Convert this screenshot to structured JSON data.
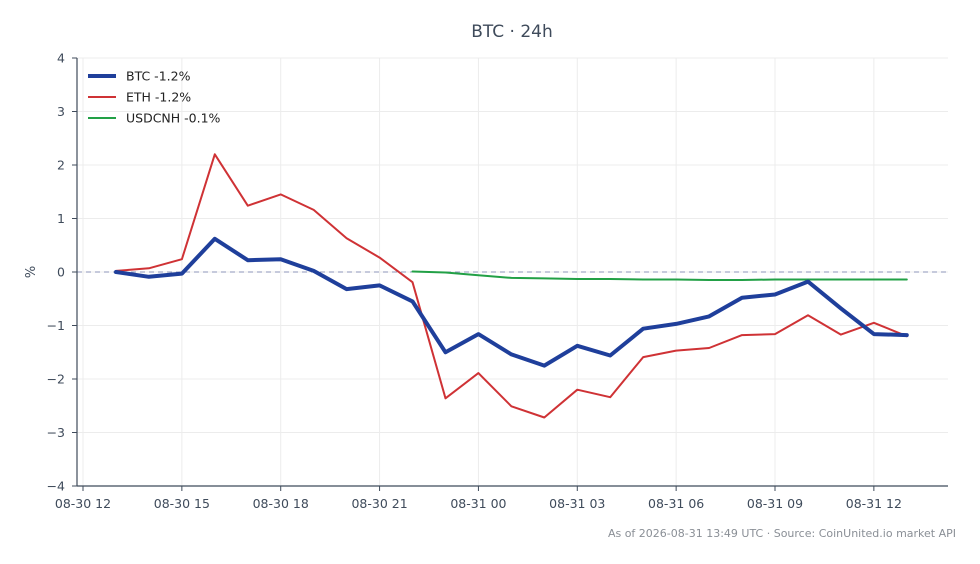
{
  "chart_data": {
    "type": "line",
    "title": "BTC · 24h",
    "xlabel": "",
    "ylabel": "%",
    "ylim": [
      -4,
      4
    ],
    "yticks": [
      4,
      3,
      2,
      1,
      0,
      -1,
      -2,
      -3,
      -4
    ],
    "ytick_labels": [
      "4",
      "3",
      "2",
      "1",
      "0",
      "−1",
      "−2",
      "−3",
      "−4"
    ],
    "xlim": [
      "2026-08-30 12:00",
      "2026-08-31 14:15"
    ],
    "xticks": [
      "2026-08-30 12:00",
      "2026-08-30 15:00",
      "2026-08-30 18:00",
      "2026-08-30 21:00",
      "2026-08-31 00:00",
      "2026-08-31 03:00",
      "2026-08-31 06:00",
      "2026-08-31 09:00",
      "2026-08-31 12:00"
    ],
    "xtick_labels": [
      "08-30 12",
      "08-30 15",
      "08-30 18",
      "08-30 21",
      "08-31 00",
      "08-31 03",
      "08-31 06",
      "08-31 09",
      "08-31 12"
    ],
    "grid": true,
    "zero_line": true,
    "legend_position": "top-left",
    "series": [
      {
        "name": "BTC -1.2%",
        "color": "#1f3f9b",
        "x": [
          "2026-08-30 13:00",
          "2026-08-30 14:00",
          "2026-08-30 15:00",
          "2026-08-30 16:00",
          "2026-08-30 17:00",
          "2026-08-30 18:00",
          "2026-08-30 19:00",
          "2026-08-30 20:00",
          "2026-08-30 21:00",
          "2026-08-30 22:00",
          "2026-08-30 23:00",
          "2026-08-31 00:00",
          "2026-08-31 01:00",
          "2026-08-31 02:00",
          "2026-08-31 03:00",
          "2026-08-31 04:00",
          "2026-08-31 05:00",
          "2026-08-31 06:00",
          "2026-08-31 07:00",
          "2026-08-31 08:00",
          "2026-08-31 09:00",
          "2026-08-31 10:00",
          "2026-08-31 11:00",
          "2026-08-31 12:00",
          "2026-08-31 13:00"
        ],
        "values": [
          0.0,
          -0.09,
          -0.03,
          0.62,
          0.22,
          0.24,
          0.02,
          -0.32,
          -0.25,
          -0.55,
          -1.5,
          -1.16,
          -1.54,
          -1.75,
          -1.38,
          -1.56,
          -1.06,
          -0.97,
          -0.83,
          -0.48,
          -0.42,
          -0.18,
          -0.68,
          -1.16,
          -1.18
        ]
      },
      {
        "name": "ETH -1.2%",
        "color": "#cf3235",
        "x": [
          "2026-08-30 13:00",
          "2026-08-30 14:00",
          "2026-08-30 15:00",
          "2026-08-30 16:00",
          "2026-08-30 17:00",
          "2026-08-30 18:00",
          "2026-08-30 19:00",
          "2026-08-30 20:00",
          "2026-08-30 21:00",
          "2026-08-30 22:00",
          "2026-08-30 23:00",
          "2026-08-31 00:00",
          "2026-08-31 01:00",
          "2026-08-31 02:00",
          "2026-08-31 03:00",
          "2026-08-31 04:00",
          "2026-08-31 05:00",
          "2026-08-31 06:00",
          "2026-08-31 07:00",
          "2026-08-31 08:00",
          "2026-08-31 09:00",
          "2026-08-31 10:00",
          "2026-08-31 11:00",
          "2026-08-31 12:00",
          "2026-08-31 13:00"
        ],
        "values": [
          0.02,
          0.07,
          0.24,
          2.2,
          1.24,
          1.45,
          1.16,
          0.63,
          0.27,
          -0.19,
          -2.36,
          -1.89,
          -2.51,
          -2.72,
          -2.2,
          -2.34,
          -1.59,
          -1.47,
          -1.42,
          -1.18,
          -1.16,
          -0.81,
          -1.17,
          -0.95,
          -1.2
        ]
      },
      {
        "name": "USDCNH -0.1%",
        "color": "#22a046",
        "x": [
          "2026-08-30 22:00",
          "2026-08-30 23:00",
          "2026-08-31 00:00",
          "2026-08-31 01:00",
          "2026-08-31 02:00",
          "2026-08-31 03:00",
          "2026-08-31 04:00",
          "2026-08-31 05:00",
          "2026-08-31 06:00",
          "2026-08-31 07:00",
          "2026-08-31 08:00",
          "2026-08-31 09:00",
          "2026-08-31 10:00",
          "2026-08-31 11:00",
          "2026-08-31 12:00",
          "2026-08-31 13:00"
        ],
        "values": [
          0.01,
          -0.01,
          -0.06,
          -0.11,
          -0.12,
          -0.13,
          -0.13,
          -0.14,
          -0.14,
          -0.15,
          -0.15,
          -0.14,
          -0.14,
          -0.14,
          -0.14,
          -0.14
        ]
      }
    ]
  },
  "footer": "As of 2026-08-31 13:49 UTC · Source: CoinUnited.io market API"
}
